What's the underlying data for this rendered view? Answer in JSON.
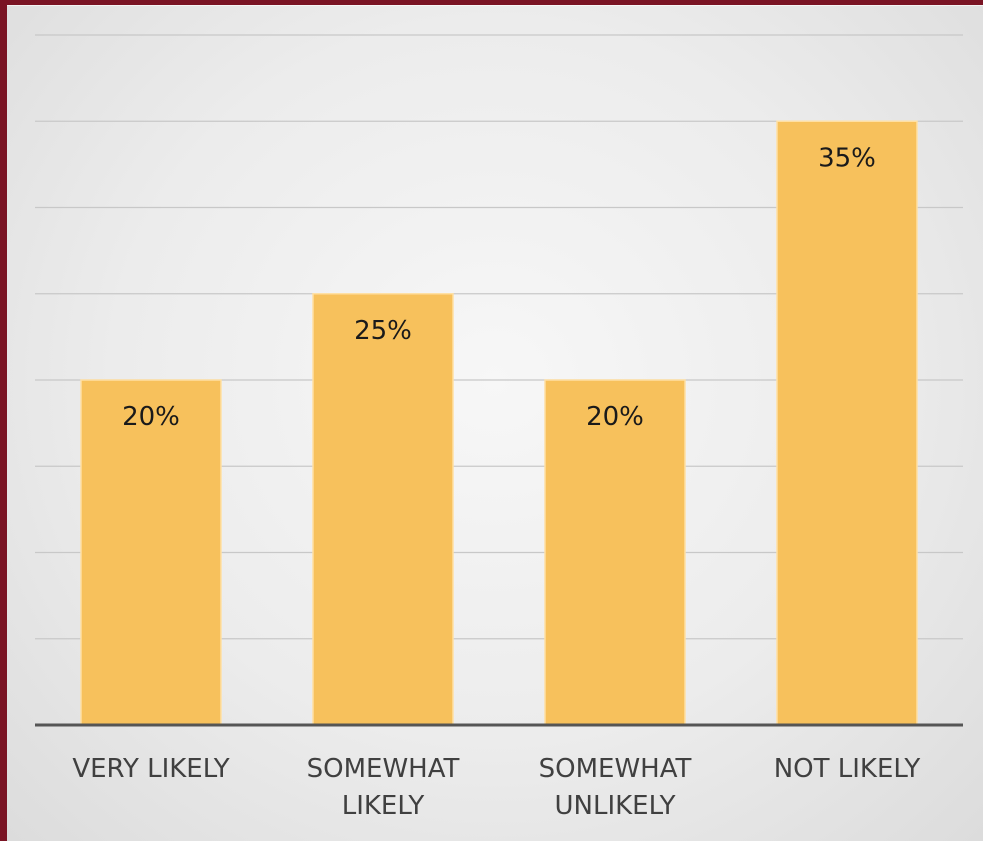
{
  "chart_data": {
    "type": "bar",
    "categories": [
      [
        "VERY LIKELY"
      ],
      [
        "SOMEWHAT",
        "LIKELY"
      ],
      [
        "SOMEWHAT",
        "UNLIKELY"
      ],
      [
        "NOT LIKELY"
      ]
    ],
    "values": [
      20,
      25,
      20,
      35
    ],
    "data_labels": [
      "20%",
      "25%",
      "20%",
      "35%"
    ],
    "title": "",
    "xlabel": "",
    "ylabel": "",
    "ylim": [
      0,
      40
    ],
    "grid": true,
    "legend": "none",
    "colors": {
      "bar": "#f7c15c",
      "bar_edge": "#ffe0a3",
      "gridline": "#c8c8c8",
      "axis": "#555555",
      "frame_border": "#7a1424"
    }
  }
}
